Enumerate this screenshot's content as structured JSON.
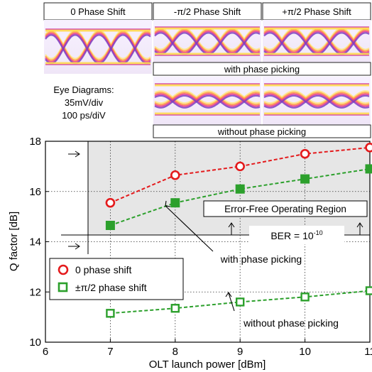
{
  "panels": {
    "top_labels": [
      "0 Phase Shift",
      "-π/2 Phase Shift",
      "+π/2 Phase Shift"
    ],
    "with_label": "with phase picking",
    "without_label": "without phase picking",
    "eye_caption": [
      "Eye Diagrams:",
      "35mV/div",
      "100 ps/diV"
    ]
  },
  "chart_data": {
    "type": "line",
    "xlabel": "OLT launch power [dBm]",
    "ylabel": "Q factor [dB]",
    "xlim": [
      6,
      11
    ],
    "ylim": [
      10,
      18
    ],
    "x_ticks": [
      "6",
      "7",
      "8",
      "9",
      "10",
      "11"
    ],
    "y_ticks": [
      "10",
      "12",
      "14",
      "16",
      "18"
    ],
    "grid": true,
    "legend_position": "lower-left",
    "series": [
      {
        "name": "0 phase shift",
        "marker": "circle",
        "color": "#e41a1c",
        "x": [
          7,
          8,
          9,
          10,
          11
        ],
        "y": [
          15.55,
          16.65,
          17.0,
          17.5,
          17.75
        ]
      },
      {
        "name": "±π/2 phase shift",
        "marker": "square",
        "color": "#2ca02c",
        "x": [
          7,
          8,
          9,
          10,
          11
        ],
        "y": [
          14.65,
          15.55,
          16.1,
          16.5,
          16.9
        ]
      },
      {
        "name": "",
        "marker": "square-open",
        "color": "#2ca02c",
        "x": [
          7,
          8,
          9,
          10,
          11
        ],
        "y": [
          11.15,
          11.35,
          11.6,
          11.8,
          12.05
        ]
      }
    ],
    "annotations": {
      "region": "Error-Free Operating Region",
      "ber": "BER = 10",
      "ber_exp": "-10",
      "with": "with phase picking",
      "without": "without phase picking"
    }
  }
}
